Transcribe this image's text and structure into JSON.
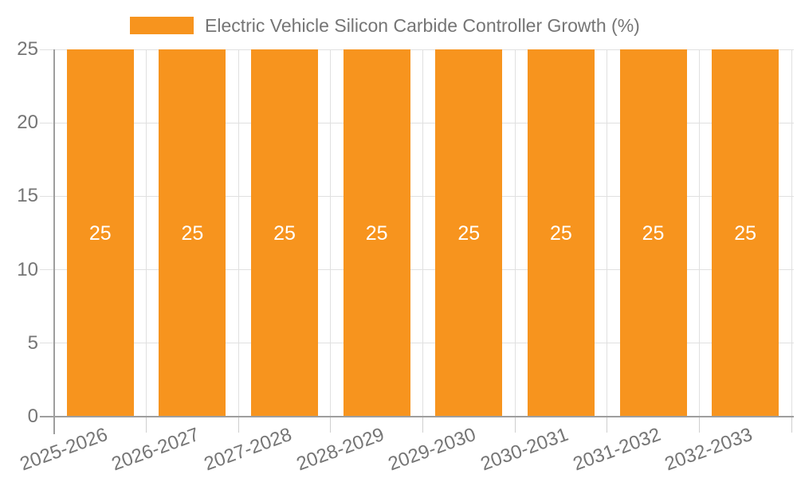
{
  "legend": {
    "label": "Electric Vehicle Silicon Carbide Controller Growth (%)"
  },
  "chart_data": {
    "type": "bar",
    "title": "Electric Vehicle Silicon Carbide Controller Growth (%)",
    "categories": [
      "2025-2026",
      "2026-2027",
      "2027-2028",
      "2028-2029",
      "2029-2030",
      "2030-2031",
      "2031-2032",
      "2032-2033"
    ],
    "series": [
      {
        "name": "Electric Vehicle Silicon Carbide Controller Growth (%)",
        "values": [
          25,
          25,
          25,
          25,
          25,
          25,
          25,
          25
        ]
      }
    ],
    "value_labels": [
      "25",
      "25",
      "25",
      "25",
      "25",
      "25",
      "25",
      "25"
    ],
    "y_ticks": [
      0,
      5,
      10,
      15,
      20,
      25
    ],
    "ylim": [
      0,
      25
    ],
    "xlabel": "",
    "ylabel": "",
    "grid": true,
    "legend_position": "top",
    "colors": {
      "bar": "#F7941E",
      "grid": "#E0E0E0",
      "tick": "#CFCFCF",
      "axis": "#9E9E9E",
      "text": "#757575",
      "value_label": "#FFFFFF",
      "background": "#FFFFFF"
    }
  }
}
